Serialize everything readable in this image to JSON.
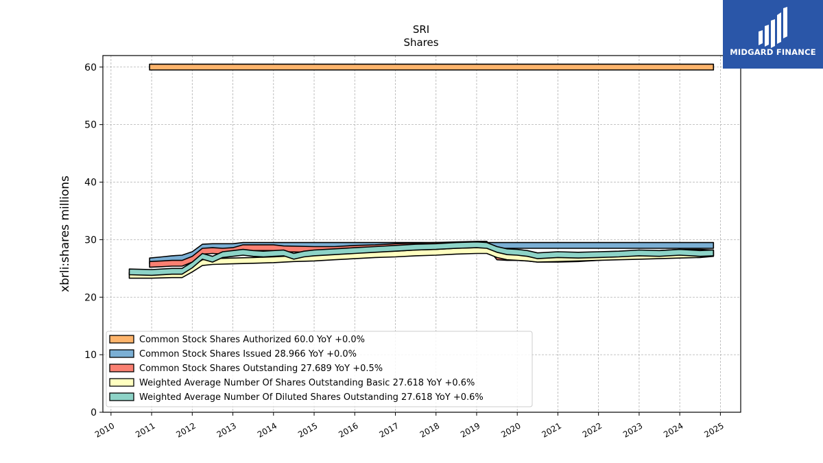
{
  "brand": {
    "name": "MIDGARD FINANCE",
    "bg": "#2a56a8"
  },
  "chart_data": {
    "type": "area",
    "title": "SRI",
    "subtitle": "Shares",
    "xlabel": "",
    "ylabel": "xbrli:shares millions",
    "xlim": [
      2009.8,
      2025.5
    ],
    "ylim": [
      0,
      62
    ],
    "xticks": [
      2010,
      2011,
      2012,
      2013,
      2014,
      2015,
      2016,
      2017,
      2018,
      2019,
      2020,
      2021,
      2022,
      2023,
      2024,
      2025
    ],
    "yticks": [
      0,
      10,
      20,
      30,
      40,
      50,
      60
    ],
    "grid": true,
    "legend_position": "lower-left",
    "band_half_width": 0.5,
    "series": [
      {
        "name": "Common Stock Shares Authorized",
        "legend": "Common Stock Shares Authorized  60.0 YoY +0.0%",
        "color": "#fdb46c",
        "points": [
          [
            2010.95,
            60.0
          ],
          [
            2024.83,
            60.0
          ]
        ]
      },
      {
        "name": "Common Stock Shares Issued",
        "legend": "Common Stock Shares Issued  28.966 YoY +0.0%",
        "color": "#7bafd4",
        "points": [
          [
            2010.95,
            26.3
          ],
          [
            2011.25,
            26.5
          ],
          [
            2011.5,
            26.7
          ],
          [
            2011.75,
            26.8
          ],
          [
            2012.0,
            27.4
          ],
          [
            2012.25,
            28.7
          ],
          [
            2012.5,
            28.8
          ],
          [
            2012.75,
            28.8
          ],
          [
            2013.0,
            28.8
          ],
          [
            2013.25,
            29.0
          ],
          [
            2014.0,
            29.0
          ],
          [
            2015.0,
            29.0
          ],
          [
            2016.0,
            29.0
          ],
          [
            2017.0,
            29.0
          ],
          [
            2018.0,
            29.0
          ],
          [
            2019.0,
            29.0
          ],
          [
            2020.0,
            29.0
          ],
          [
            2021.0,
            29.0
          ],
          [
            2022.0,
            29.0
          ],
          [
            2023.0,
            29.0
          ],
          [
            2024.0,
            29.0
          ],
          [
            2024.83,
            29.0
          ]
        ]
      },
      {
        "name": "Common Stock Shares Outstanding",
        "legend": "Common Stock Shares Outstanding  27.689 YoY +0.5%",
        "color": "#fa8072",
        "points": [
          [
            2010.95,
            25.7
          ],
          [
            2011.25,
            25.8
          ],
          [
            2011.5,
            25.9
          ],
          [
            2011.75,
            25.9
          ],
          [
            2012.0,
            26.6
          ],
          [
            2012.25,
            28.0
          ],
          [
            2012.5,
            28.1
          ],
          [
            2012.75,
            28.0
          ],
          [
            2013.0,
            28.1
          ],
          [
            2013.25,
            28.6
          ],
          [
            2013.5,
            28.6
          ],
          [
            2014.0,
            28.6
          ],
          [
            2014.25,
            28.4
          ],
          [
            2015.0,
            28.3
          ],
          [
            2015.5,
            28.3
          ],
          [
            2016.0,
            28.5
          ],
          [
            2016.5,
            28.6
          ],
          [
            2017.0,
            28.8
          ],
          [
            2017.5,
            28.9
          ],
          [
            2018.0,
            29.0
          ],
          [
            2018.5,
            29.1
          ],
          [
            2019.0,
            29.2
          ],
          [
            2019.25,
            29.2
          ],
          [
            2019.5,
            27.0
          ],
          [
            2019.75,
            26.9
          ],
          [
            2020.0,
            26.9
          ],
          [
            2020.25,
            26.8
          ],
          [
            2020.5,
            26.6
          ],
          [
            2021.0,
            26.6
          ],
          [
            2021.5,
            26.7
          ],
          [
            2022.0,
            26.9
          ],
          [
            2022.5,
            27.2
          ],
          [
            2023.0,
            27.4
          ],
          [
            2023.5,
            27.6
          ],
          [
            2024.0,
            27.8
          ],
          [
            2024.5,
            27.8
          ],
          [
            2024.83,
            27.7
          ]
        ]
      },
      {
        "name": "Weighted Average Number Of Shares Outstanding Basic",
        "legend": "Weighted Average Number Of Shares Outstanding Basic  27.618 YoY +0.6%",
        "color": "#ffffc0",
        "points": [
          [
            2010.45,
            23.8
          ],
          [
            2011.0,
            23.8
          ],
          [
            2011.5,
            23.9
          ],
          [
            2011.75,
            23.9
          ],
          [
            2012.0,
            24.9
          ],
          [
            2012.25,
            26.0
          ],
          [
            2012.5,
            26.2
          ],
          [
            2013.0,
            26.3
          ],
          [
            2013.5,
            26.4
          ],
          [
            2014.0,
            26.5
          ],
          [
            2014.5,
            26.7
          ],
          [
            2015.0,
            26.8
          ],
          [
            2015.5,
            27.0
          ],
          [
            2016.0,
            27.2
          ],
          [
            2016.5,
            27.4
          ],
          [
            2017.0,
            27.5
          ],
          [
            2017.5,
            27.7
          ],
          [
            2018.0,
            27.8
          ],
          [
            2018.5,
            28.0
          ],
          [
            2019.0,
            28.1
          ],
          [
            2019.25,
            28.1
          ],
          [
            2019.5,
            27.4
          ],
          [
            2019.75,
            27.0
          ],
          [
            2020.0,
            26.9
          ],
          [
            2020.25,
            26.8
          ],
          [
            2020.5,
            26.6
          ],
          [
            2021.0,
            26.7
          ],
          [
            2021.5,
            26.8
          ],
          [
            2022.0,
            26.9
          ],
          [
            2022.5,
            27.0
          ],
          [
            2023.0,
            27.1
          ],
          [
            2023.5,
            27.2
          ],
          [
            2024.0,
            27.3
          ],
          [
            2024.5,
            27.4
          ],
          [
            2024.83,
            27.6
          ]
        ]
      },
      {
        "name": "Weighted Average Number Of Diluted Shares Outstanding",
        "legend": "Weighted Average Number Of Diluted Shares Outstanding  27.618 YoY +0.6%",
        "color": "#8dd3c7",
        "points": [
          [
            2010.45,
            24.4
          ],
          [
            2011.0,
            24.3
          ],
          [
            2011.5,
            24.5
          ],
          [
            2011.75,
            24.5
          ],
          [
            2012.0,
            25.6
          ],
          [
            2012.25,
            27.1
          ],
          [
            2012.5,
            26.6
          ],
          [
            2012.75,
            27.4
          ],
          [
            2013.0,
            27.6
          ],
          [
            2013.25,
            27.8
          ],
          [
            2013.5,
            27.6
          ],
          [
            2013.75,
            27.5
          ],
          [
            2014.0,
            27.6
          ],
          [
            2014.25,
            27.7
          ],
          [
            2014.5,
            27.1
          ],
          [
            2014.75,
            27.5
          ],
          [
            2015.0,
            27.7
          ],
          [
            2015.5,
            27.9
          ],
          [
            2016.0,
            28.1
          ],
          [
            2016.5,
            28.3
          ],
          [
            2017.0,
            28.5
          ],
          [
            2017.5,
            28.7
          ],
          [
            2018.0,
            28.8
          ],
          [
            2018.5,
            29.0
          ],
          [
            2019.0,
            29.1
          ],
          [
            2019.25,
            29.0
          ],
          [
            2019.5,
            28.3
          ],
          [
            2019.75,
            27.9
          ],
          [
            2020.0,
            27.8
          ],
          [
            2020.25,
            27.6
          ],
          [
            2020.5,
            27.2
          ],
          [
            2021.0,
            27.4
          ],
          [
            2021.5,
            27.3
          ],
          [
            2022.0,
            27.4
          ],
          [
            2022.5,
            27.5
          ],
          [
            2023.0,
            27.7
          ],
          [
            2023.5,
            27.6
          ],
          [
            2024.0,
            27.8
          ],
          [
            2024.5,
            27.6
          ],
          [
            2024.83,
            27.7
          ]
        ]
      }
    ]
  }
}
